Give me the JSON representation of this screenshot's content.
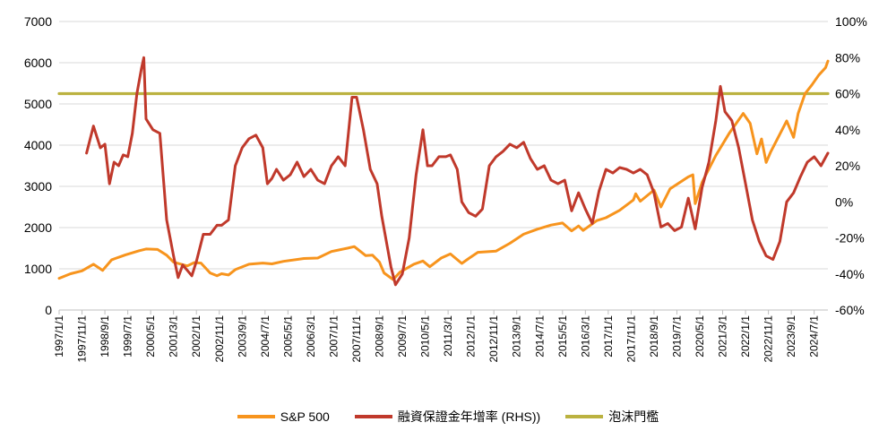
{
  "chart_data": {
    "type": "line",
    "title": "",
    "y_left": {
      "min": 0,
      "max": 7000,
      "ticks": [
        "0",
        "1000",
        "2000",
        "3000",
        "4000",
        "5000",
        "6000",
        "7000"
      ]
    },
    "y_right": {
      "min": -60,
      "max": 100,
      "ticks": [
        "-60%",
        "-40%",
        "-20%",
        "0%",
        "20%",
        "40%",
        "60%",
        "80%",
        "100%"
      ]
    },
    "x_ticks": [
      "1997/1/1",
      "1997/11/1",
      "1998/9/1",
      "1999/7/1",
      "2000/5/1",
      "2001/3/1",
      "2002/1/1",
      "2002/11/1",
      "2003/9/1",
      "2004/7/1",
      "2005/5/1",
      "2006/3/1",
      "2007/1/1",
      "2007/11/1",
      "2008/9/1",
      "2009/7/1",
      "2010/5/1",
      "2011/3/1",
      "2012/1/1",
      "2012/11/1",
      "2013/9/1",
      "2014/7/1",
      "2015/5/1",
      "2016/3/1",
      "2017/1/1",
      "2017/11/1",
      "2018/9/1",
      "2019/7/1",
      "2020/5/1",
      "2021/3/1",
      "2022/1/1",
      "2022/11/1",
      "2023/9/1",
      "2024/7/1"
    ],
    "grid": "horizontal",
    "legend_position": "bottom",
    "series": [
      {
        "name": "S&P 500",
        "axis": "left",
        "color": "#F7941D",
        "points": [
          [
            "1997/1",
            770
          ],
          [
            "1997/6",
            880
          ],
          [
            "1997/11",
            950
          ],
          [
            "1998/4",
            1110
          ],
          [
            "1998/8",
            960
          ],
          [
            "1998/12",
            1220
          ],
          [
            "1999/6",
            1340
          ],
          [
            "1999/12",
            1440
          ],
          [
            "2000/3",
            1480
          ],
          [
            "2000/8",
            1470
          ],
          [
            "2000/12",
            1330
          ],
          [
            "2001/3",
            1160
          ],
          [
            "2001/9",
            1070
          ],
          [
            "2001/12",
            1150
          ],
          [
            "2002/3",
            1140
          ],
          [
            "2002/7",
            900
          ],
          [
            "2002/10",
            830
          ],
          [
            "2002/12",
            880
          ],
          [
            "2003/3",
            850
          ],
          [
            "2003/6",
            980
          ],
          [
            "2003/12",
            1110
          ],
          [
            "2004/6",
            1140
          ],
          [
            "2004/10",
            1120
          ],
          [
            "2005/3",
            1180
          ],
          [
            "2005/12",
            1250
          ],
          [
            "2006/6",
            1260
          ],
          [
            "2006/12",
            1420
          ],
          [
            "2007/7",
            1500
          ],
          [
            "2007/10",
            1540
          ],
          [
            "2008/3",
            1320
          ],
          [
            "2008/6",
            1330
          ],
          [
            "2008/9",
            1160
          ],
          [
            "2008/11",
            900
          ],
          [
            "2009/3",
            740
          ],
          [
            "2009/6",
            920
          ],
          [
            "2009/12",
            1110
          ],
          [
            "2010/4",
            1190
          ],
          [
            "2010/7",
            1050
          ],
          [
            "2010/12",
            1260
          ],
          [
            "2011/4",
            1360
          ],
          [
            "2011/9",
            1130
          ],
          [
            "2011/12",
            1250
          ],
          [
            "2012/4",
            1400
          ],
          [
            "2012/12",
            1430
          ],
          [
            "2013/6",
            1620
          ],
          [
            "2013/12",
            1840
          ],
          [
            "2014/6",
            1960
          ],
          [
            "2014/12",
            2060
          ],
          [
            "2015/5",
            2110
          ],
          [
            "2015/9",
            1920
          ],
          [
            "2015/12",
            2040
          ],
          [
            "2016/2",
            1930
          ],
          [
            "2016/8",
            2170
          ],
          [
            "2016/12",
            2240
          ],
          [
            "2017/6",
            2420
          ],
          [
            "2017/12",
            2670
          ],
          [
            "2018/1",
            2820
          ],
          [
            "2018/3",
            2640
          ],
          [
            "2018/9",
            2910
          ],
          [
            "2018/12",
            2500
          ],
          [
            "2019/4",
            2940
          ],
          [
            "2019/12",
            3230
          ],
          [
            "2020/2",
            3280
          ],
          [
            "2020/3",
            2580
          ],
          [
            "2020/6",
            3100
          ],
          [
            "2020/12",
            3750
          ],
          [
            "2021/6",
            4300
          ],
          [
            "2021/12",
            4770
          ],
          [
            "2022/3",
            4530
          ],
          [
            "2022/6",
            3790
          ],
          [
            "2022/8",
            4150
          ],
          [
            "2022/10",
            3580
          ],
          [
            "2022/12",
            3840
          ],
          [
            "2023/7",
            4590
          ],
          [
            "2023/10",
            4190
          ],
          [
            "2023/12",
            4770
          ],
          [
            "2024/3",
            5250
          ],
          [
            "2024/6",
            5460
          ],
          [
            "2024/9",
            5700
          ],
          [
            "2024/12",
            5880
          ],
          [
            "2025/1",
            6040
          ]
        ]
      },
      {
        "name": "融資保證金年增率 (RHS))",
        "axis": "right",
        "color": "#C0392B",
        "points": [
          [
            "1998/1",
            27
          ],
          [
            "1998/4",
            42
          ],
          [
            "1998/7",
            30
          ],
          [
            "1998/9",
            32
          ],
          [
            "1998/11",
            10
          ],
          [
            "1999/1",
            22
          ],
          [
            "1999/3",
            20
          ],
          [
            "1999/5",
            26
          ],
          [
            "1999/7",
            25
          ],
          [
            "1999/9",
            38
          ],
          [
            "1999/11",
            60
          ],
          [
            "2000/1",
            74
          ],
          [
            "2000/2",
            80
          ],
          [
            "2000/3",
            46
          ],
          [
            "2000/6",
            40
          ],
          [
            "2000/9",
            38
          ],
          [
            "2000/12",
            -10
          ],
          [
            "2001/3",
            -30
          ],
          [
            "2001/5",
            -42
          ],
          [
            "2001/7",
            -35
          ],
          [
            "2001/9",
            -38
          ],
          [
            "2001/11",
            -41
          ],
          [
            "2002/1",
            -33
          ],
          [
            "2002/4",
            -18
          ],
          [
            "2002/7",
            -18
          ],
          [
            "2002/10",
            -13
          ],
          [
            "2002/12",
            -13
          ],
          [
            "2003/3",
            -10
          ],
          [
            "2003/6",
            20
          ],
          [
            "2003/9",
            30
          ],
          [
            "2003/12",
            35
          ],
          [
            "2004/3",
            37
          ],
          [
            "2004/6",
            30
          ],
          [
            "2004/8",
            10
          ],
          [
            "2004/10",
            13
          ],
          [
            "2004/12",
            18
          ],
          [
            "2005/3",
            12
          ],
          [
            "2005/6",
            15
          ],
          [
            "2005/9",
            22
          ],
          [
            "2005/12",
            14
          ],
          [
            "2006/3",
            18
          ],
          [
            "2006/6",
            12
          ],
          [
            "2006/9",
            10
          ],
          [
            "2006/12",
            20
          ],
          [
            "2007/3",
            25
          ],
          [
            "2007/6",
            20
          ],
          [
            "2007/9",
            58
          ],
          [
            "2007/11",
            58
          ],
          [
            "2008/2",
            40
          ],
          [
            "2008/5",
            18
          ],
          [
            "2008/8",
            10
          ],
          [
            "2008/10",
            -8
          ],
          [
            "2008/12",
            -22
          ],
          [
            "2009/2",
            -36
          ],
          [
            "2009/4",
            -46
          ],
          [
            "2009/7",
            -40
          ],
          [
            "2009/10",
            -20
          ],
          [
            "2010/1",
            15
          ],
          [
            "2010/4",
            40
          ],
          [
            "2010/6",
            20
          ],
          [
            "2010/8",
            20
          ],
          [
            "2010/11",
            25
          ],
          [
            "2011/2",
            25
          ],
          [
            "2011/4",
            26
          ],
          [
            "2011/7",
            18
          ],
          [
            "2011/9",
            0
          ],
          [
            "2011/12",
            -6
          ],
          [
            "2012/3",
            -8
          ],
          [
            "2012/6",
            -4
          ],
          [
            "2012/9",
            20
          ],
          [
            "2012/12",
            25
          ],
          [
            "2013/3",
            28
          ],
          [
            "2013/6",
            32
          ],
          [
            "2013/9",
            30
          ],
          [
            "2013/12",
            33
          ],
          [
            "2014/3",
            24
          ],
          [
            "2014/6",
            18
          ],
          [
            "2014/9",
            20
          ],
          [
            "2014/12",
            12
          ],
          [
            "2015/3",
            10
          ],
          [
            "2015/6",
            12
          ],
          [
            "2015/9",
            -5
          ],
          [
            "2015/12",
            5
          ],
          [
            "2016/3",
            -4
          ],
          [
            "2016/6",
            -12
          ],
          [
            "2016/9",
            6
          ],
          [
            "2016/12",
            18
          ],
          [
            "2017/3",
            16
          ],
          [
            "2017/6",
            19
          ],
          [
            "2017/9",
            18
          ],
          [
            "2017/12",
            16
          ],
          [
            "2018/3",
            18
          ],
          [
            "2018/6",
            15
          ],
          [
            "2018/9",
            5
          ],
          [
            "2018/12",
            -14
          ],
          [
            "2019/3",
            -12
          ],
          [
            "2019/6",
            -16
          ],
          [
            "2019/9",
            -14
          ],
          [
            "2019/12",
            2
          ],
          [
            "2020/3",
            -15
          ],
          [
            "2020/6",
            8
          ],
          [
            "2020/9",
            22
          ],
          [
            "2020/12",
            45
          ],
          [
            "2021/2",
            64
          ],
          [
            "2021/4",
            50
          ],
          [
            "2021/7",
            45
          ],
          [
            "2021/10",
            30
          ],
          [
            "2022/1",
            10
          ],
          [
            "2022/4",
            -10
          ],
          [
            "2022/7",
            -22
          ],
          [
            "2022/10",
            -30
          ],
          [
            "2023/1",
            -32
          ],
          [
            "2023/4",
            -22
          ],
          [
            "2023/7",
            0
          ],
          [
            "2023/10",
            5
          ],
          [
            "2024/1",
            14
          ],
          [
            "2024/4",
            22
          ],
          [
            "2024/7",
            25
          ],
          [
            "2024/10",
            20
          ],
          [
            "2025/1",
            27
          ]
        ]
      },
      {
        "name": "泡沫門檻",
        "axis": "right",
        "color": "#BBB240",
        "points": [
          [
            "1997/1",
            60
          ],
          [
            "2025/1",
            60
          ]
        ]
      }
    ]
  }
}
